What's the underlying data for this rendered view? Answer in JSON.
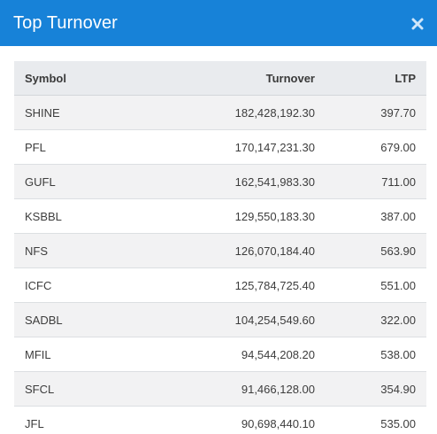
{
  "header": {
    "title": "Top Turnover",
    "close_icon": "close-icon"
  },
  "colors": {
    "accent": "#1782d8"
  },
  "table": {
    "columns": {
      "symbol": "Symbol",
      "turnover": "Turnover",
      "ltp": "LTP"
    },
    "rows": [
      {
        "symbol": "SHINE",
        "turnover": "182,428,192.30",
        "ltp": "397.70"
      },
      {
        "symbol": "PFL",
        "turnover": "170,147,231.30",
        "ltp": "679.00"
      },
      {
        "symbol": "GUFL",
        "turnover": "162,541,983.30",
        "ltp": "711.00"
      },
      {
        "symbol": "KSBBL",
        "turnover": "129,550,183.30",
        "ltp": "387.00"
      },
      {
        "symbol": "NFS",
        "turnover": "126,070,184.40",
        "ltp": "563.90"
      },
      {
        "symbol": "ICFC",
        "turnover": "125,784,725.40",
        "ltp": "551.00"
      },
      {
        "symbol": "SADBL",
        "turnover": "104,254,549.60",
        "ltp": "322.00"
      },
      {
        "symbol": "MFIL",
        "turnover": "94,544,208.20",
        "ltp": "538.00"
      },
      {
        "symbol": "SFCL",
        "turnover": "91,466,128.00",
        "ltp": "354.90"
      },
      {
        "symbol": "JFL",
        "turnover": "90,698,440.10",
        "ltp": "535.00"
      }
    ]
  }
}
